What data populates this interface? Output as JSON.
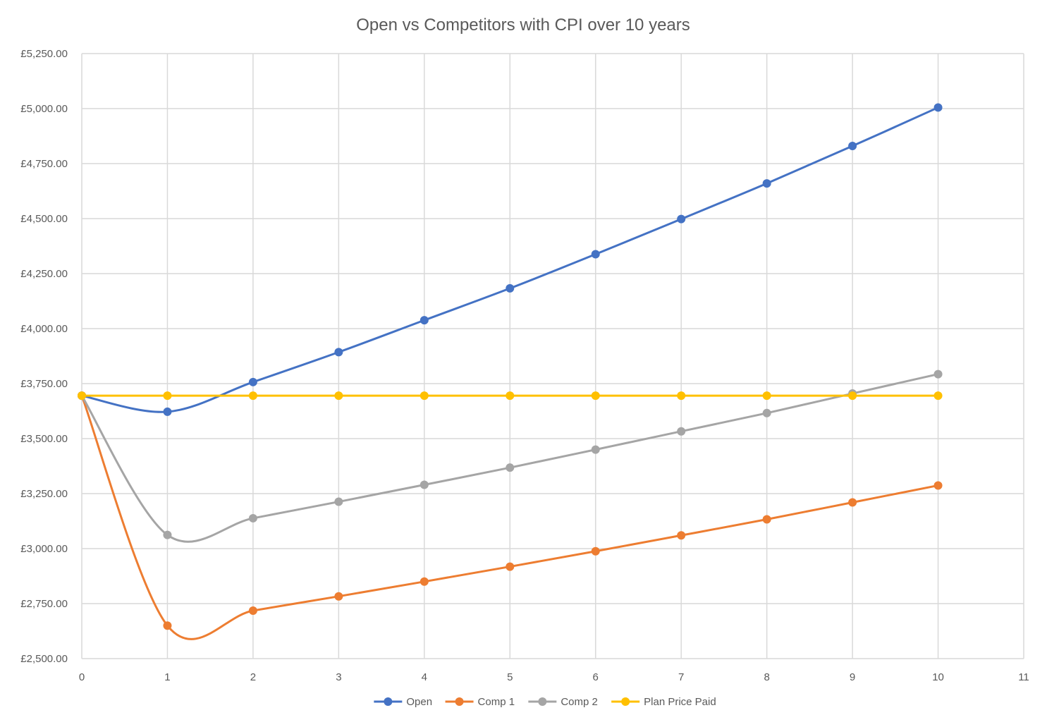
{
  "chart_data": {
    "type": "line",
    "title": "Open vs Competitors with CPI over 10 years",
    "xlabel": "",
    "ylabel": "",
    "xlim": [
      0,
      11
    ],
    "ylim": [
      2500,
      5250
    ],
    "x_ticks": [
      "0",
      "1",
      "2",
      "3",
      "4",
      "5",
      "6",
      "7",
      "8",
      "9",
      "10",
      "11"
    ],
    "y_ticks": [
      "£2,500.00",
      "£2,750.00",
      "£3,000.00",
      "£3,250.00",
      "£3,500.00",
      "£3,750.00",
      "£4,000.00",
      "£4,250.00",
      "£4,500.00",
      "£4,750.00",
      "£5,000.00",
      "£5,250.00"
    ],
    "grid": true,
    "smooth": true,
    "legend_position": "bottom",
    "x": [
      0,
      1,
      2,
      3,
      4,
      5,
      6,
      7,
      8,
      9,
      10
    ],
    "series": [
      {
        "name": "Open",
        "color": "#4472c4",
        "values": [
          3695,
          3622,
          3757,
          3893,
          4038,
          4183,
          4338,
          4498,
          4660,
          4830,
          5005
        ]
      },
      {
        "name": "Comp 1",
        "color": "#ed7d31",
        "values": [
          3695,
          2650,
          2718,
          2783,
          2850,
          2918,
          2988,
          3060,
          3133,
          3210,
          3287
        ]
      },
      {
        "name": "Comp 2",
        "color": "#a5a5a5",
        "values": [
          3695,
          3062,
          3138,
          3213,
          3290,
          3368,
          3450,
          3533,
          3616,
          3705,
          3793
        ]
      },
      {
        "name": "Plan Price Paid",
        "color": "#ffc000",
        "values": [
          3695,
          3695,
          3695,
          3695,
          3695,
          3695,
          3695,
          3695,
          3695,
          3695,
          3695
        ]
      }
    ]
  }
}
